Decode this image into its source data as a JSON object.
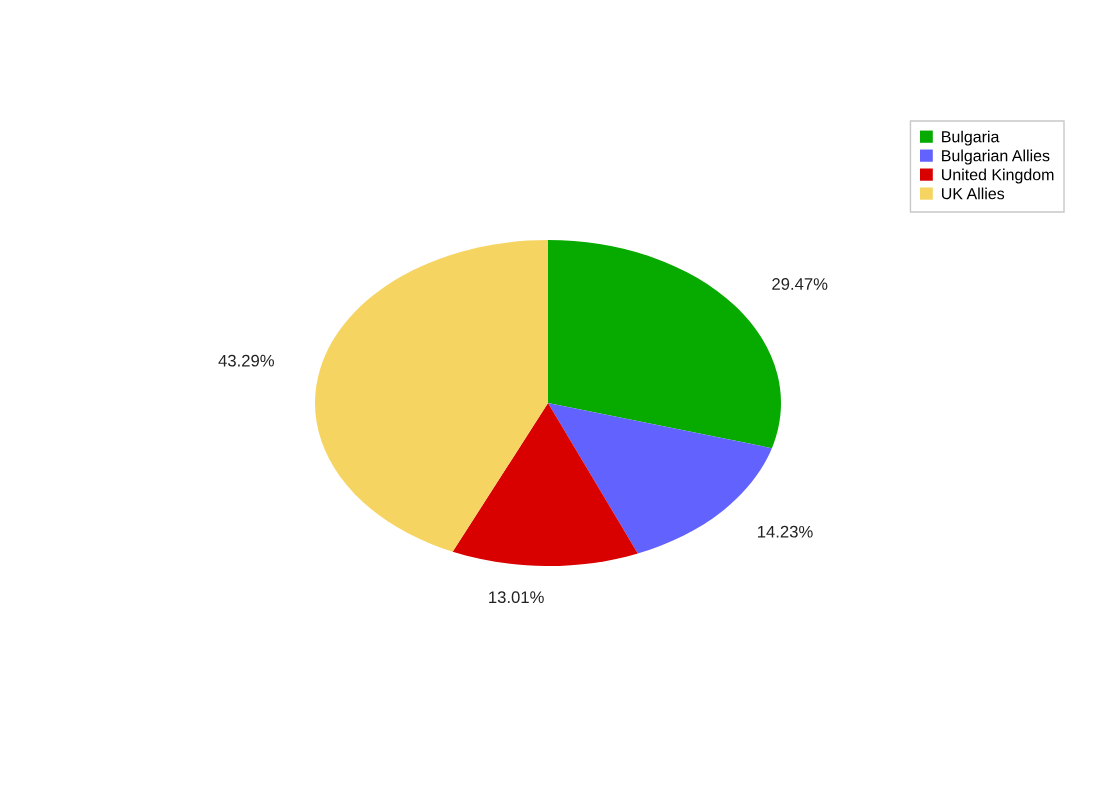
{
  "chart_data": {
    "type": "pie",
    "categories": [
      "Bulgaria",
      "Bulgarian Allies",
      "United Kingdom",
      "UK Allies"
    ],
    "values": [
      29.47,
      14.23,
      13.01,
      43.29
    ],
    "colors": [
      "#07ab00",
      "#6262ff",
      "#d90000",
      "#f6d462"
    ],
    "value_labels": [
      "29.47%",
      "14.23%",
      "13.01%",
      "43.29%"
    ],
    "legend": "top right"
  }
}
